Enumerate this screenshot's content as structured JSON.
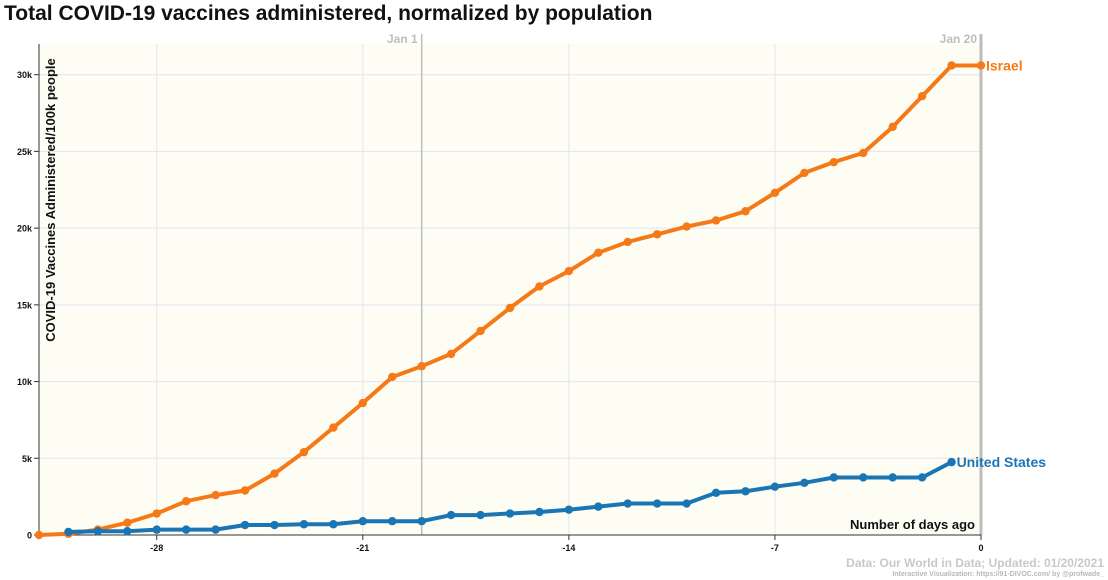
{
  "title": "Total COVID-19 vaccines administered, normalized by population",
  "source": "Data: Our World in Data; Updated: 01/20/2021",
  "credit": "Interactive Visualization: https://91-DIVOC.com/ by @profwade_",
  "colors": {
    "Israel": "#f57a17",
    "United States": "#1a75b5",
    "plot_bg": "#fdfdf3",
    "grid": "#e6e2f4",
    "marker": "#bdbdbd"
  },
  "chart_data": {
    "type": "line",
    "xlabel": "Number of days ago",
    "ylabel": "COVID-19 Vaccines Administered/100k people",
    "xlim": [
      -32,
      0
    ],
    "ylim": [
      0,
      32000
    ],
    "xticks": [
      {
        "value": -28,
        "label": "-28"
      },
      {
        "value": -21,
        "label": "-21"
      },
      {
        "value": -14,
        "label": "-14"
      },
      {
        "value": -7,
        "label": "-7"
      },
      {
        "value": 0,
        "label": "0"
      }
    ],
    "yticks": [
      {
        "value": 0,
        "label": "0"
      },
      {
        "value": 5000,
        "label": "5k"
      },
      {
        "value": 10000,
        "label": "10k"
      },
      {
        "value": 15000,
        "label": "15k"
      },
      {
        "value": 20000,
        "label": "20k"
      },
      {
        "value": 25000,
        "label": "25k"
      },
      {
        "value": 30000,
        "label": "30k"
      }
    ],
    "markers": [
      {
        "x": -19,
        "label": "Jan 1"
      },
      {
        "x": 0,
        "label": "Jan 20"
      }
    ],
    "series": [
      {
        "name": "Israel",
        "x": [
          -32,
          -31,
          -30,
          -29,
          -28,
          -27,
          -26,
          -25,
          -24,
          -23,
          -22,
          -21,
          -20,
          -19,
          -18,
          -17,
          -16,
          -15,
          -14,
          -13,
          -12,
          -11,
          -10,
          -9,
          -8,
          -7,
          -6,
          -5,
          -4,
          -3,
          -2,
          -1,
          0
        ],
        "values": [
          0,
          80,
          350,
          800,
          1400,
          2200,
          2600,
          2900,
          4000,
          5400,
          7000,
          8600,
          10300,
          11000,
          11800,
          13300,
          14800,
          16200,
          17200,
          18400,
          19100,
          19600,
          20100,
          20500,
          21100,
          22300,
          23600,
          24300,
          24900,
          26600,
          28600,
          30600,
          30600
        ]
      },
      {
        "name": "United States",
        "x": [
          -31,
          -30,
          -29,
          -28,
          -27,
          -26,
          -25,
          -24,
          -23,
          -22,
          -21,
          -20,
          -19,
          -18,
          -17,
          -16,
          -15,
          -14,
          -13,
          -12,
          -11,
          -10,
          -9,
          -8,
          -7,
          -6,
          -5,
          -4,
          -3,
          -2,
          -1
        ],
        "values": [
          200,
          250,
          250,
          350,
          350,
          350,
          650,
          650,
          700,
          700,
          900,
          900,
          900,
          1300,
          1300,
          1400,
          1500,
          1650,
          1850,
          2050,
          2050,
          2050,
          2750,
          2850,
          3150,
          3400,
          3750,
          3750,
          3750,
          3750,
          4750
        ]
      }
    ]
  }
}
